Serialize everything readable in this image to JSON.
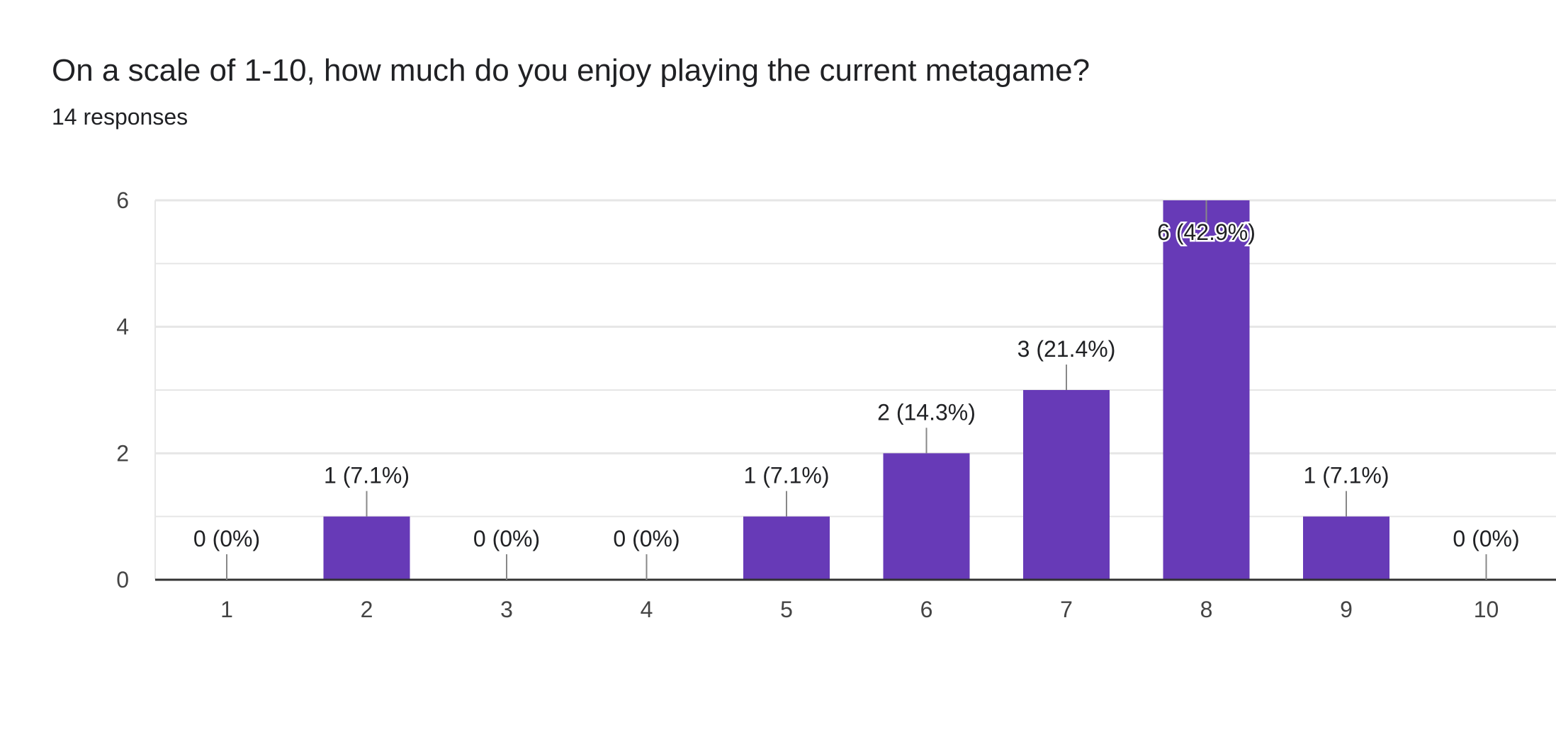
{
  "header": {
    "title": "On a scale of 1-10, how much do you enjoy playing the current metagame?",
    "subtitle": "14 responses"
  },
  "colors": {
    "bar": "#673ab7",
    "grid": "#e6e6e6",
    "axis": "#333333",
    "leader": "#888888"
  },
  "chart_data": {
    "type": "bar",
    "title": "On a scale of 1-10, how much do you enjoy playing the current metagame?",
    "subtitle": "14 responses",
    "categories": [
      "1",
      "2",
      "3",
      "4",
      "5",
      "6",
      "7",
      "8",
      "9",
      "10"
    ],
    "values": [
      0,
      1,
      0,
      0,
      1,
      2,
      3,
      6,
      1,
      0
    ],
    "data_labels": [
      "0 (0%)",
      "1 (7.1%)",
      "0 (0%)",
      "0 (0%)",
      "1 (7.1%)",
      "2 (14.3%)",
      "3 (21.4%)",
      "6 (42.9%)",
      "1 (7.1%)",
      "0 (0%)"
    ],
    "y_ticks": [
      "0",
      "2",
      "4",
      "6"
    ],
    "xlabel": "",
    "ylabel": "",
    "ylim": [
      0,
      6
    ],
    "grid": true,
    "legend": "none"
  }
}
